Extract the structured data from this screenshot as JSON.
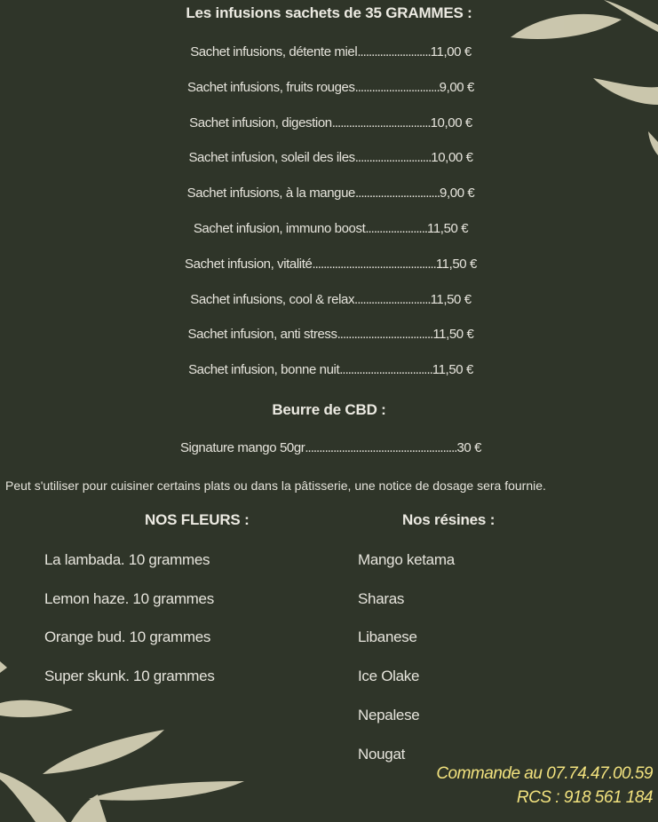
{
  "infusions": {
    "title": "Les infusions sachets de 35 GRAMMES :",
    "items": [
      {
        "name": "Sachet infusions, détente miel",
        "dots": "..........................",
        "price": "11,00 €"
      },
      {
        "name": "Sachet infusions, fruits rouges",
        "dots": "..............................",
        "price": "9,00 €"
      },
      {
        "name": "Sachet infusion, digestion",
        "dots": "...................................",
        "price": "10,00 €"
      },
      {
        "name": "Sachet infusion, soleil des iles",
        "dots": "...........................",
        "price": "10,00 €"
      },
      {
        "name": "Sachet infusions, à la mangue",
        "dots": "..............................",
        "price": "9,00 €"
      },
      {
        "name": "Sachet infusion, immuno boost",
        "dots": "......................",
        "price": "11,50 €"
      },
      {
        "name": "Sachet infusion, vitalité",
        "dots": "............................................",
        "price": "11,50 €"
      },
      {
        "name": "Sachet infusions, cool & relax",
        "dots": "...........................",
        "price": "11,50 €"
      },
      {
        "name": "Sachet infusion, anti stress",
        "dots": "..................................",
        "price": "11,50 €"
      },
      {
        "name": "Sachet infusion, bonne nuit",
        "dots": ".................................",
        "price": "11,50 €"
      }
    ]
  },
  "beurre": {
    "title": "Beurre de CBD :",
    "item": {
      "name": "Signature mango 50gr",
      "dots": "......................................................",
      "price": "30 €"
    },
    "note": "Peut s'utiliser pour cuisiner certains plats ou dans la pâtisserie, une notice de dosage sera fournie."
  },
  "fleurs": {
    "title": "NOS FLEURS :",
    "items": [
      "La lambada.  10 grammes",
      "Lemon haze. 10 grammes",
      "Orange bud.  10 grammes",
      "Super skunk. 10 grammes"
    ]
  },
  "resines": {
    "title": "Nos résines :",
    "items": [
      "Mango ketama",
      "Sharas",
      "Libanese",
      "Ice Olake",
      "Nepalese",
      "Nougat"
    ]
  },
  "footer": {
    "order": "Commande au 07.74.47.00.59",
    "rcs": "RCS : 918 561 184"
  },
  "colors": {
    "background": "#2f3529",
    "text": "#eceae2",
    "accent": "#f2e27e",
    "leaf": "#d8d3b8"
  }
}
